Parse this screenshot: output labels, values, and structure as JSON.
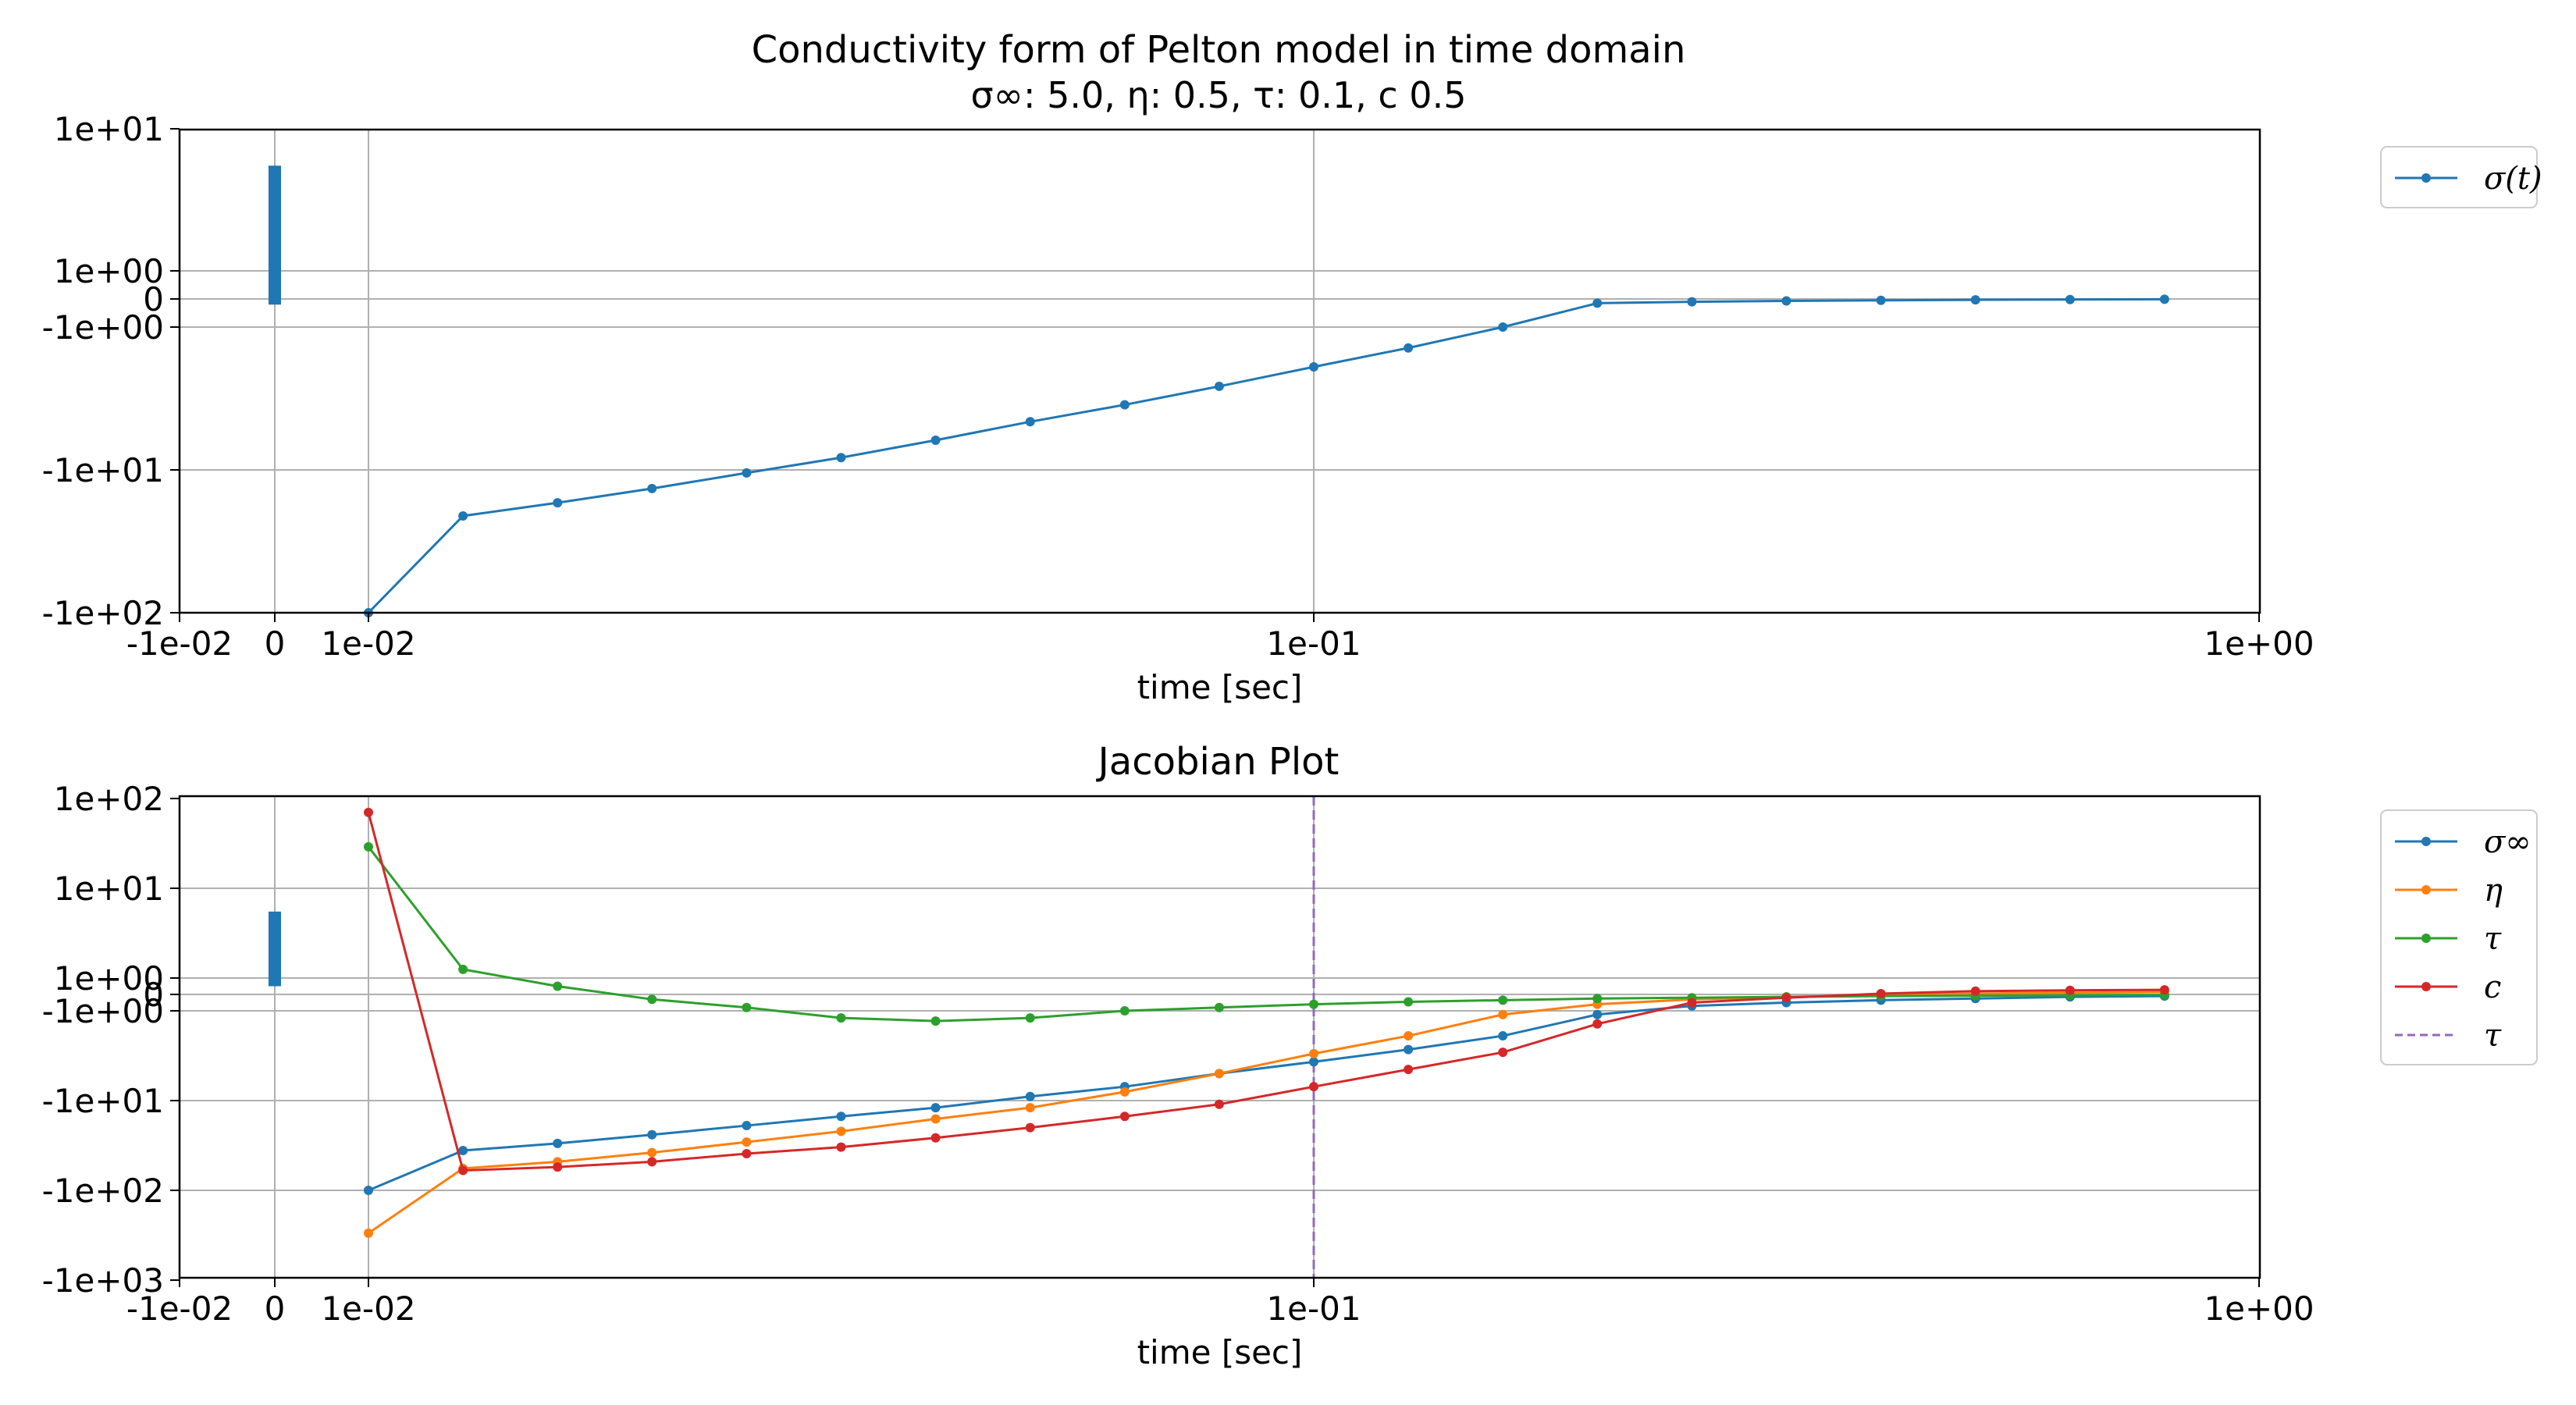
{
  "figure": {
    "title_line1": "Conductivity form of Pelton model in time domain",
    "title_line2": "σ∞: 5.0, η: 0.5, τ: 0.1, c 0.5"
  },
  "chart_data": [
    {
      "type": "line",
      "title": "",
      "xlabel": "time [sec]",
      "ylabel": "",
      "xscale": "symlog",
      "yscale": "symlog",
      "xlim": [
        -0.01,
        1.0
      ],
      "ylim": [
        -100,
        10
      ],
      "xticks": [
        -0.01,
        0,
        0.01,
        0.1,
        1.0
      ],
      "xtick_labels": [
        "-1e-02",
        "0",
        "1e-02",
        "1e-01",
        "1e+00"
      ],
      "yticks": [
        -100,
        -10,
        -1,
        0,
        1,
        10
      ],
      "ytick_labels": [
        "-1e+02",
        "-1e+01",
        "-1e+00",
        "0",
        "1e+00",
        "1e+01"
      ],
      "grid": true,
      "legend_placement": "outside-right",
      "x": [
        0.01,
        0.01259,
        0.01585,
        0.01995,
        0.02512,
        0.03162,
        0.03981,
        0.05012,
        0.0631,
        0.07943,
        0.1,
        0.1259,
        0.1585,
        0.1995,
        0.2512,
        0.3162,
        0.3981,
        0.5012,
        0.631,
        0.7943
      ],
      "series": [
        {
          "name": "σ(t)",
          "color": "#1f77b4",
          "values": [
            -100,
            -21,
            -17,
            -13.5,
            -10.5,
            -8.2,
            -6.2,
            -4.6,
            -3.5,
            -2.6,
            -1.9,
            -1.4,
            -1.0,
            -0.15,
            -0.1,
            -0.07,
            -0.05,
            -0.03,
            -0.02,
            -0.01
          ]
        }
      ],
      "span": {
        "x": 0,
        "y0": -0.2,
        "y1": 5.5,
        "color": "#1f77b4"
      }
    },
    {
      "type": "line",
      "title": "Jacobian Plot",
      "xlabel": "time [sec]",
      "ylabel": "",
      "xscale": "symlog",
      "yscale": "symlog",
      "xlim": [
        -0.01,
        1.0
      ],
      "ylim": [
        -1000,
        100
      ],
      "xticks": [
        -0.01,
        0,
        0.01,
        0.1,
        1.0
      ],
      "xtick_labels": [
        "-1e-02",
        "0",
        "1e-02",
        "1e-01",
        "1e+00"
      ],
      "yticks": [
        -1000,
        -100,
        -10,
        -1,
        0,
        1,
        10,
        100
      ],
      "ytick_labels": [
        "-1e+03",
        "-1e+02",
        "-1e+01",
        "-1e+00",
        "0",
        "1e+00",
        "1e+01",
        "1e+02"
      ],
      "grid": true,
      "legend_placement": "outside-right",
      "x": [
        0.01,
        0.01259,
        0.01585,
        0.01995,
        0.02512,
        0.03162,
        0.03981,
        0.05012,
        0.0631,
        0.07943,
        0.1,
        0.1259,
        0.1585,
        0.1995,
        0.2512,
        0.3162,
        0.3981,
        0.5012,
        0.631,
        0.7943
      ],
      "series": [
        {
          "name": "σ∞",
          "color": "#1f77b4",
          "values": [
            -100,
            -36,
            -30,
            -24,
            -19,
            -15,
            -12,
            -9,
            -7,
            -5,
            -3.7,
            -2.7,
            -1.9,
            -1.1,
            -0.7,
            -0.5,
            -0.35,
            -0.25,
            -0.15,
            -0.1
          ]
        },
        {
          "name": "η",
          "color": "#ff7f0e",
          "values": [
            -300,
            -57,
            -48,
            -38,
            -29,
            -22,
            -16,
            -12,
            -8,
            -5,
            -3,
            -1.9,
            -1.1,
            -0.6,
            -0.3,
            -0.15,
            -0.05,
            0.05,
            0.1,
            0.15
          ]
        },
        {
          "name": "τ",
          "color": "#2ca02c",
          "values": [
            29,
            1.25,
            0.5,
            -0.3,
            -0.8,
            -1.2,
            -1.3,
            -1.2,
            -1.0,
            -0.8,
            -0.6,
            -0.45,
            -0.35,
            -0.25,
            -0.2,
            -0.15,
            -0.1,
            -0.08,
            -0.05,
            -0.03
          ]
        },
        {
          "name": "c",
          "color": "#d62728",
          "values": [
            70,
            -60,
            -55,
            -48,
            -39,
            -33,
            -26,
            -20,
            -15,
            -11,
            -7,
            -4.5,
            -2.9,
            -1.4,
            -0.5,
            -0.2,
            0.05,
            0.2,
            0.25,
            0.28
          ]
        }
      ],
      "vline": {
        "name": "τ",
        "x": 0.1,
        "color": "#9467bd",
        "style": "dashed"
      },
      "span": {
        "x": 0,
        "y0": 0.5,
        "y1": 5.5,
        "color": "#1f77b4"
      }
    }
  ]
}
